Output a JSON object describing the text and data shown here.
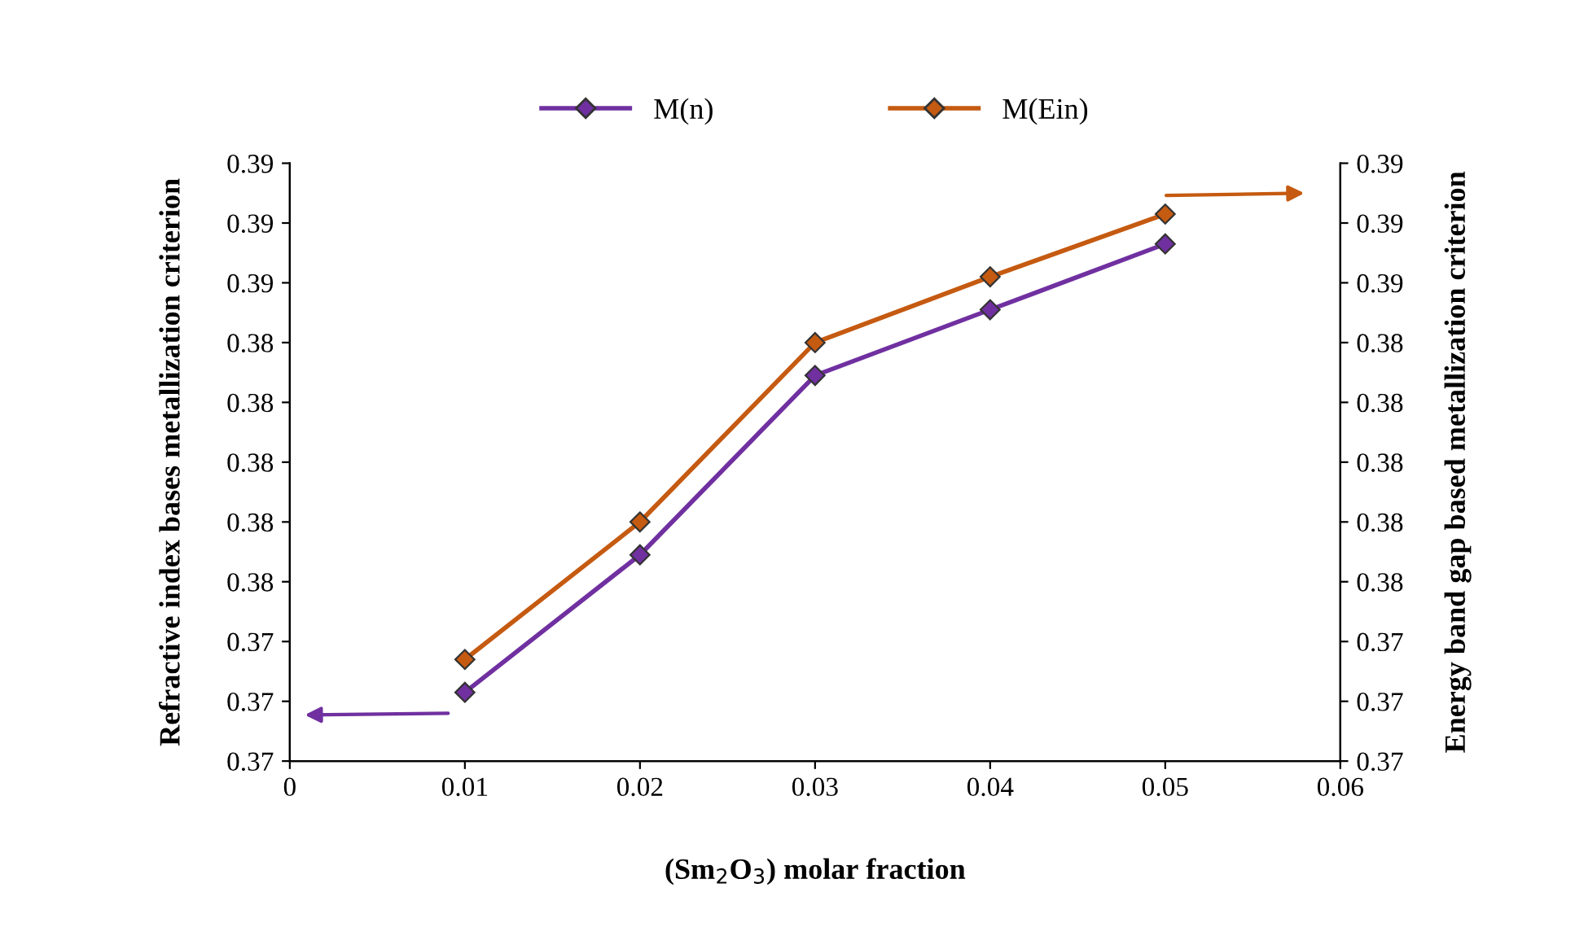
{
  "chart_data": {
    "type": "line",
    "xlabel": "(Sm$_{2}$O$_{3}$) molar fraction",
    "ylabel": "Refractive index bases metallization criterion",
    "y2label": "Energy band gap based metallization criterion",
    "x": [
      0.01,
      0.02,
      0.03,
      0.04,
      0.05
    ],
    "series": [
      {
        "name": "M(n)",
        "color": "#7030a0",
        "values": [
          0.3723,
          0.3769,
          0.3829,
          0.3851,
          0.3873
        ]
      },
      {
        "name": "M(Ein)",
        "color": "#c55a11",
        "axis": "y2",
        "values": [
          0.3734,
          0.378,
          0.384,
          0.3862,
          0.3883
        ]
      }
    ],
    "xlim": [
      0,
      0.06
    ],
    "xticks": [
      0,
      0.01,
      0.02,
      0.03,
      0.04,
      0.05,
      0.06
    ],
    "ylim": [
      0.37,
      0.39
    ],
    "yticks": [
      {
        "value": 0.37,
        "label": "0.37"
      },
      {
        "value": 0.372,
        "label": "0.37"
      },
      {
        "value": 0.374,
        "label": "0.37"
      },
      {
        "value": 0.376,
        "label": "0.38"
      },
      {
        "value": 0.378,
        "label": "0.38"
      },
      {
        "value": 0.38,
        "label": "0.38"
      },
      {
        "value": 0.382,
        "label": "0.38"
      },
      {
        "value": 0.384,
        "label": "0.38"
      },
      {
        "value": 0.386,
        "label": "0.39"
      },
      {
        "value": 0.388,
        "label": "0.39"
      },
      {
        "value": 0.39,
        "label": "0.39"
      }
    ],
    "y2lim": [
      0.37,
      0.39
    ],
    "y2ticks": [
      {
        "value": 0.37,
        "label": "0.37"
      },
      {
        "value": 0.372,
        "label": "0.37"
      },
      {
        "value": 0.374,
        "label": "0.37"
      },
      {
        "value": 0.376,
        "label": "0.38"
      },
      {
        "value": 0.378,
        "label": "0.38"
      },
      {
        "value": 0.38,
        "label": "0.38"
      },
      {
        "value": 0.382,
        "label": "0.38"
      },
      {
        "value": 0.384,
        "label": "0.38"
      },
      {
        "value": 0.386,
        "label": "0.39"
      },
      {
        "value": 0.388,
        "label": "0.39"
      },
      {
        "value": 0.39,
        "label": "0.39"
      }
    ],
    "grid": false,
    "legend": "top",
    "marker": "diamond",
    "line_style": "solid"
  }
}
